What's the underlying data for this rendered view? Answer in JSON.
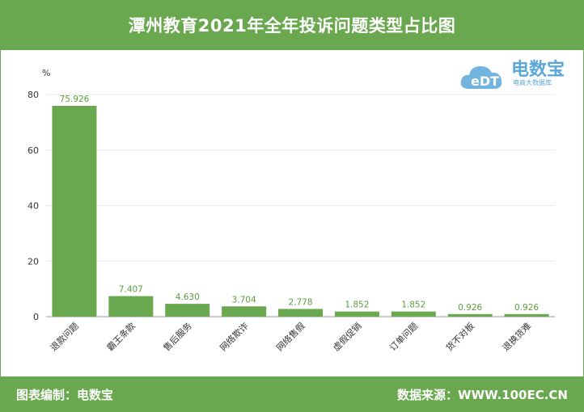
{
  "header": {
    "title": "潭州教育2021年全年投诉问题类型占比图"
  },
  "footer": {
    "left": "图表编制：电数宝",
    "right": "数据来源：WWW.100EC.CN"
  },
  "logo": {
    "mark": "eDT",
    "name": "电数宝",
    "sub": "电商大数据库"
  },
  "colors": {
    "bar": "#6aa84f",
    "label": "#5b9c3f",
    "brand": "#5aa7d8",
    "band": "#6aa84f"
  },
  "chart_data": {
    "type": "bar",
    "ylabel": "%",
    "ylim": [
      0,
      80
    ],
    "yticks": [
      0,
      20,
      40,
      60,
      80
    ],
    "categories": [
      "退款问题",
      "霸王条款",
      "售后服务",
      "网络欺诈",
      "网络售假",
      "虚假促销",
      "订单问题",
      "货不对板",
      "退换货难"
    ],
    "values": [
      75.926,
      7.407,
      4.63,
      3.704,
      2.778,
      1.852,
      1.852,
      0.926,
      0.926
    ],
    "value_labels": [
      "75.926",
      "7.407",
      "4.630",
      "3.704",
      "2.778",
      "1.852",
      "1.852",
      "0.926",
      "0.926"
    ],
    "grid": true,
    "legend": "none"
  }
}
